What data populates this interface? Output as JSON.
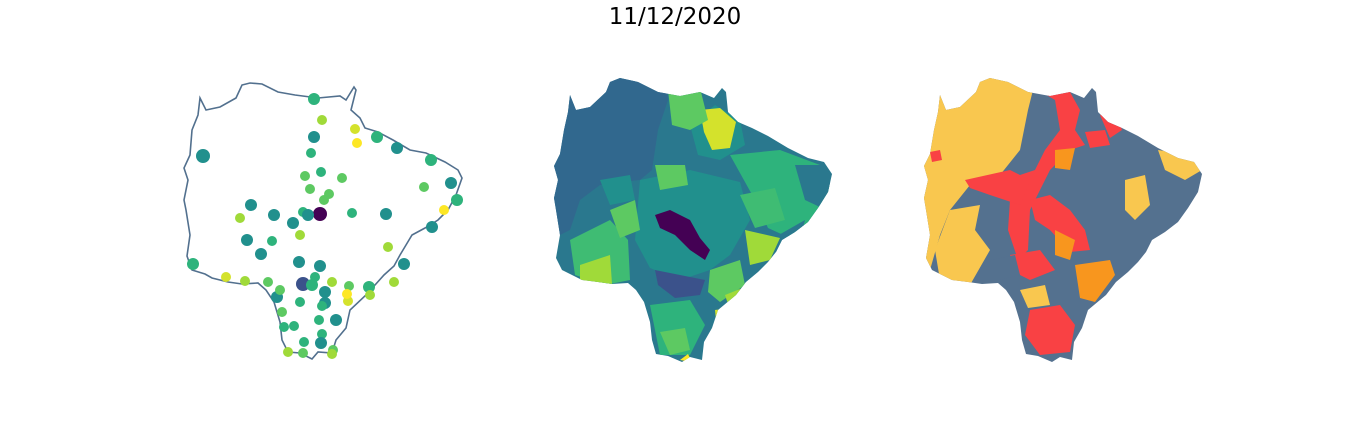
{
  "title": "11/12/2020",
  "colors": {
    "outline": "#52708e",
    "background": "#ffffff",
    "viridis": [
      "#440154",
      "#3b528b",
      "#21908d",
      "#2eb37c",
      "#5dc962",
      "#a0da39",
      "#d4e22c",
      "#fde725"
    ],
    "category": {
      "grey_blue": "#54718f",
      "yellow": "#f9c74f",
      "red": "#f94144",
      "orange": "#f8961e"
    }
  },
  "panels": [
    {
      "id": "points",
      "kind": "point-map",
      "point_count": 60
    },
    {
      "id": "choropleth",
      "kind": "choropleth-continuous"
    },
    {
      "id": "categories",
      "kind": "choropleth-categorical"
    }
  ]
}
